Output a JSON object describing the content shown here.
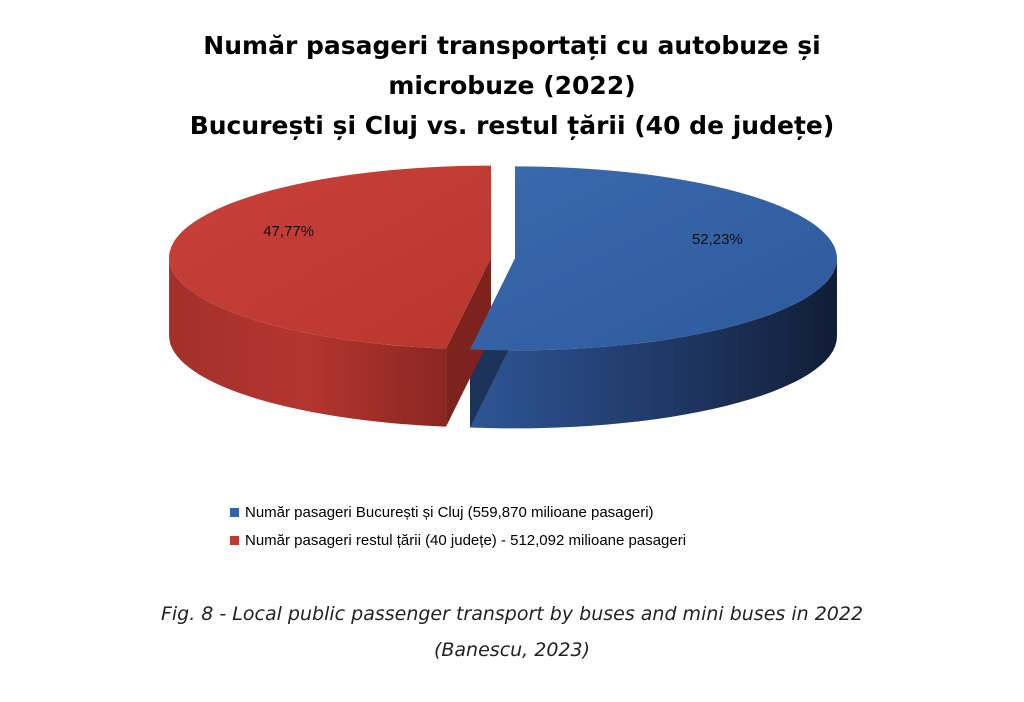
{
  "chart_data": {
    "type": "pie",
    "title_lines": [
      "Număr pasageri transportați cu autobuze și",
      "microbuze (2022)",
      "București și Cluj vs. restul țării (40 de județe)"
    ],
    "slices": [
      {
        "label": "Număr pasageri București și Cluj (559,870 milioane pasageri)",
        "value": 52.23,
        "value_label": "52,23%",
        "color": "#3462A6"
      },
      {
        "label": "Număr pasageri restul țării (40 județe) - 512,092 milioane pasageri",
        "value": 47.77,
        "value_label": "47,77%",
        "color": "#C03A34"
      }
    ],
    "style": "3d exploded pie",
    "legend_position": "bottom"
  },
  "caption": {
    "line1": "Fig. 8 - Local public passenger transport by buses and mini buses in 2022",
    "line2": "(Banescu, 2023)"
  }
}
